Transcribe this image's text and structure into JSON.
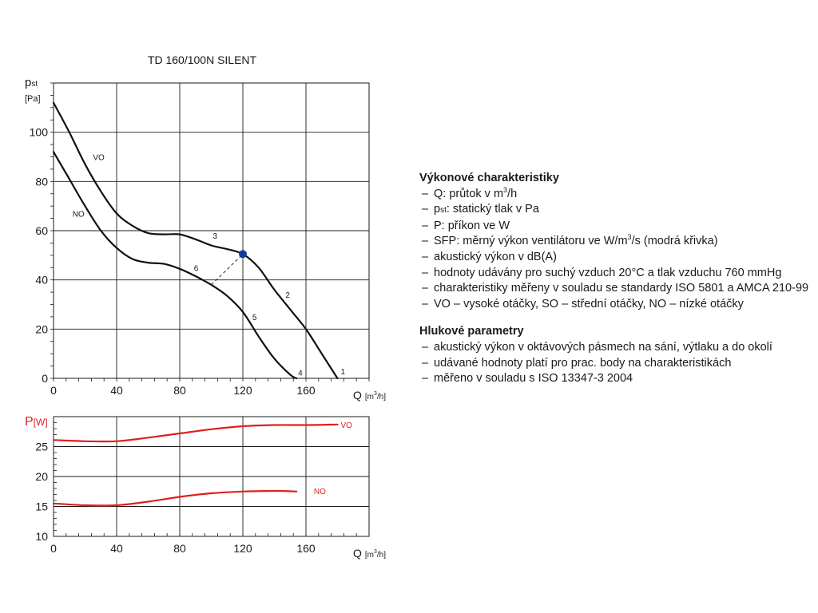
{
  "chart_data": [
    {
      "type": "line",
      "title": "TD 160/100N SILENT",
      "ylabel_main": "p",
      "ylabel_sub": "st",
      "yunit": "[Pa]",
      "xlabel": "Q",
      "xunit_pre": "[m",
      "xunit_sup": "3",
      "xunit_post": "/h]",
      "xlim": [
        0,
        200
      ],
      "ylim": [
        0,
        120
      ],
      "xticks": [
        0,
        40,
        80,
        120,
        160
      ],
      "yticks": [
        0,
        20,
        40,
        60,
        80,
        100
      ],
      "grid": true,
      "series": [
        {
          "name": "VO",
          "color": "#111111",
          "x": [
            0,
            10,
            20,
            30,
            40,
            50,
            60,
            70,
            80,
            90,
            100,
            110,
            120,
            130,
            140,
            150,
            160,
            170,
            180
          ],
          "y": [
            112,
            100,
            87,
            76,
            67,
            62,
            59,
            58.5,
            58.5,
            56.5,
            54,
            52.5,
            50.5,
            45,
            36,
            28,
            20,
            10,
            0
          ]
        },
        {
          "name": "NO",
          "color": "#111111",
          "x": [
            0,
            10,
            20,
            30,
            40,
            50,
            60,
            70,
            80,
            90,
            100,
            110,
            120,
            130,
            140,
            150,
            154
          ],
          "y": [
            92,
            81,
            70,
            60,
            53,
            48.5,
            47,
            46.5,
            44.5,
            41.5,
            38,
            33.5,
            27,
            17,
            8,
            1.5,
            0
          ]
        }
      ],
      "series_labels": [
        {
          "text": "VO",
          "x": 25,
          "y": 90
        },
        {
          "text": "NO",
          "x": 12,
          "y": 67
        }
      ],
      "operating_point": {
        "x": 120,
        "y": 50.5,
        "color": "#1a3b9e"
      },
      "dashed_line": {
        "from": [
          100,
          38
        ],
        "to": [
          120,
          50.5
        ]
      },
      "point_labels": [
        {
          "text": "1",
          "x": 182,
          "y": 3
        },
        {
          "text": "2",
          "x": 147,
          "y": 34
        },
        {
          "text": "3",
          "x": 101,
          "y": 58
        },
        {
          "text": "4",
          "x": 155,
          "y": 2.5
        },
        {
          "text": "5",
          "x": 126,
          "y": 25
        },
        {
          "text": "6",
          "x": 89,
          "y": 45
        }
      ]
    },
    {
      "type": "line",
      "ylabel_main": "P",
      "yunit": "[W]",
      "xlabel": "Q",
      "xunit_pre": "[m",
      "xunit_sup": "3",
      "xunit_post": "/h]",
      "xlim": [
        0,
        200
      ],
      "ylim": [
        10,
        30
      ],
      "xticks": [
        0,
        40,
        80,
        120,
        160
      ],
      "yticks": [
        10,
        15,
        20,
        25
      ],
      "grid": true,
      "series": [
        {
          "name": "VO",
          "color": "#e02020",
          "x": [
            0,
            20,
            40,
            60,
            80,
            100,
            120,
            140,
            160,
            180
          ],
          "y": [
            26.1,
            25.9,
            25.9,
            26.5,
            27.2,
            27.9,
            28.4,
            28.6,
            28.6,
            28.7
          ]
        },
        {
          "name": "NO",
          "color": "#e02020",
          "x": [
            0,
            20,
            40,
            60,
            80,
            100,
            120,
            140,
            154
          ],
          "y": [
            15.5,
            15.2,
            15.2,
            15.8,
            16.6,
            17.2,
            17.5,
            17.6,
            17.5
          ]
        }
      ],
      "series_labels": [
        {
          "text": "VO",
          "x": 182,
          "y": 28.7
        },
        {
          "text": "NO",
          "x": 165,
          "y": 17.6
        }
      ]
    }
  ],
  "legend": {
    "heading1": "Výkonové charakteristiky",
    "items1": [
      {
        "pre": "Q: průtok v m",
        "sup": "3",
        "post": "/h"
      },
      {
        "pre": "p",
        "sub": "st",
        "post": ": statický tlak v Pa"
      },
      {
        "pre": "P: příkon ve W"
      },
      {
        "pre": "SFP: měrný výkon ventilátoru ve W/m",
        "sup": "3",
        "post": "/s (modrá křivka)"
      },
      {
        "pre": "akustický výkon v dB(A)"
      },
      {
        "pre": "hodnoty udávány pro suchý vzduch 20°C a tlak vzduchu 760 mmHg"
      },
      {
        "pre": "charakteristiky měřeny v souladu se standardy ISO 5801 a AMCA 210-99"
      },
      {
        "pre": "VO – vysoké otáčky, SO – střední otáčky, NO – nízké otáčky"
      }
    ],
    "heading2": "Hlukové parametry",
    "items2": [
      {
        "pre": "akustický výkon v oktávových pásmech na sání, výtlaku a do okolí"
      },
      {
        "pre": "udávané hodnoty platí pro prac. body na charakteristikách"
      },
      {
        "pre": "měřeno v souladu s ISO 13347-3 2004"
      }
    ]
  }
}
